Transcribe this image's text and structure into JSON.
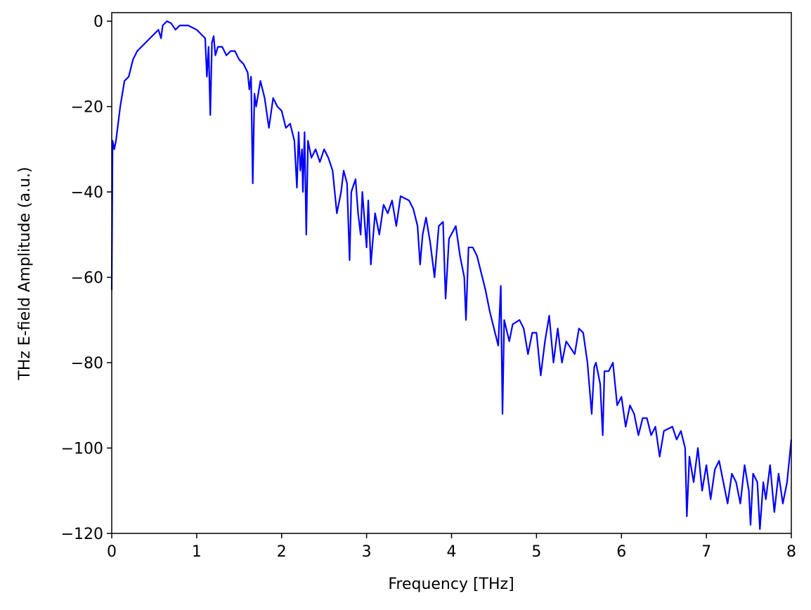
{
  "chart_data": {
    "type": "line",
    "xlabel": "Frequency [THz]",
    "ylabel": "THz E-field Amplitude (a.u.)",
    "color": "#0000ff",
    "xlim": [
      0,
      8
    ],
    "ylim": [
      -120,
      2
    ],
    "xticks": [
      0,
      1,
      2,
      3,
      4,
      5,
      6,
      7,
      8
    ],
    "yticks": [
      {
        "value": -120,
        "label": "−120"
      },
      {
        "value": -100,
        "label": "−100"
      },
      {
        "value": -80,
        "label": "−80"
      },
      {
        "value": -60,
        "label": "−60"
      },
      {
        "value": -40,
        "label": "−40"
      },
      {
        "value": -20,
        "label": "−20"
      },
      0
    ],
    "grid": false,
    "x": [
      0,
      0.01,
      0.03,
      0.05,
      0.1,
      0.15,
      0.2,
      0.25,
      0.3,
      0.4,
      0.5,
      0.55,
      0.58,
      0.6,
      0.65,
      0.7,
      0.75,
      0.8,
      0.9,
      1.0,
      1.05,
      1.1,
      1.12,
      1.14,
      1.16,
      1.18,
      1.2,
      1.22,
      1.25,
      1.3,
      1.35,
      1.4,
      1.45,
      1.5,
      1.55,
      1.6,
      1.62,
      1.64,
      1.66,
      1.68,
      1.7,
      1.75,
      1.8,
      1.85,
      1.9,
      1.95,
      2.0,
      2.05,
      2.1,
      2.15,
      2.18,
      2.2,
      2.22,
      2.24,
      2.25,
      2.27,
      2.29,
      2.31,
      2.35,
      2.4,
      2.45,
      2.5,
      2.55,
      2.6,
      2.65,
      2.7,
      2.73,
      2.77,
      2.8,
      2.82,
      2.87,
      2.9,
      2.93,
      2.95,
      3.0,
      3.02,
      3.05,
      3.1,
      3.15,
      3.2,
      3.25,
      3.3,
      3.35,
      3.4,
      3.5,
      3.55,
      3.6,
      3.63,
      3.66,
      3.7,
      3.75,
      3.8,
      3.85,
      3.9,
      3.93,
      3.97,
      4.05,
      4.1,
      4.15,
      4.17,
      4.2,
      4.25,
      4.3,
      4.35,
      4.4,
      4.45,
      4.5,
      4.55,
      4.58,
      4.6,
      4.62,
      4.68,
      4.72,
      4.8,
      4.85,
      4.9,
      4.95,
      5.0,
      5.05,
      5.1,
      5.15,
      5.2,
      5.25,
      5.3,
      5.35,
      5.45,
      5.5,
      5.55,
      5.6,
      5.65,
      5.68,
      5.7,
      5.75,
      5.78,
      5.8,
      5.85,
      5.9,
      5.95,
      6.0,
      6.05,
      6.1,
      6.15,
      6.2,
      6.25,
      6.3,
      6.35,
      6.4,
      6.45,
      6.5,
      6.6,
      6.65,
      6.7,
      6.75,
      6.77,
      6.8,
      6.85,
      6.9,
      6.95,
      7.0,
      7.05,
      7.1,
      7.15,
      7.2,
      7.25,
      7.3,
      7.35,
      7.4,
      7.45,
      7.5,
      7.52,
      7.55,
      7.6,
      7.63,
      7.67,
      7.7,
      7.75,
      7.8,
      7.85,
      7.9,
      7.95,
      8.0
    ],
    "values": [
      -63,
      -28,
      -30,
      -28,
      -20,
      -14,
      -13,
      -9,
      -7,
      -5,
      -3,
      -2,
      -4,
      -1,
      0,
      -0.5,
      -2,
      -1,
      -1,
      -2,
      -3,
      -4,
      -13,
      -6,
      -22,
      -5,
      -3.5,
      -8,
      -6,
      -6,
      -8,
      -7,
      -7,
      -9,
      -10,
      -12,
      -16,
      -13,
      -38,
      -17,
      -20,
      -14,
      -18,
      -25,
      -18,
      -20,
      -21,
      -25,
      -24,
      -28,
      -39,
      -26,
      -35,
      -30,
      -40,
      -26,
      -50,
      -28,
      -32,
      -30,
      -33,
      -30,
      -32,
      -35,
      -45,
      -40,
      -35,
      -38,
      -56,
      -40,
      -37,
      -45,
      -50,
      -40,
      -53,
      -42,
      -57,
      -45,
      -50,
      -43,
      -45,
      -42,
      -48,
      -41,
      -42,
      -44,
      -48,
      -57,
      -50,
      -46,
      -52,
      -60,
      -48,
      -47,
      -65,
      -51,
      -48,
      -55,
      -60,
      -70,
      -53,
      -53,
      -55,
      -59,
      -63,
      -68,
      -72,
      -76,
      -62,
      -92,
      -70,
      -75,
      -71,
      -70,
      -72,
      -78,
      -73,
      -73,
      -83,
      -75,
      -69,
      -80,
      -72,
      -80,
      -75,
      -78,
      -72,
      -73,
      -80,
      -92,
      -81,
      -80,
      -85,
      -97,
      -82,
      -82,
      -80,
      -90,
      -88,
      -95,
      -90,
      -92,
      -97,
      -93,
      -93,
      -97,
      -95,
      -102,
      -96,
      -95,
      -98,
      -96,
      -100,
      -116,
      -102,
      -108,
      -100,
      -110,
      -104,
      -112,
      -105,
      -103,
      -108,
      -113,
      -106,
      -108,
      -113,
      -104,
      -110,
      -118,
      -106,
      -108,
      -119,
      -108,
      -112,
      -104,
      -115,
      -106,
      -113,
      -108,
      -98
    ]
  }
}
